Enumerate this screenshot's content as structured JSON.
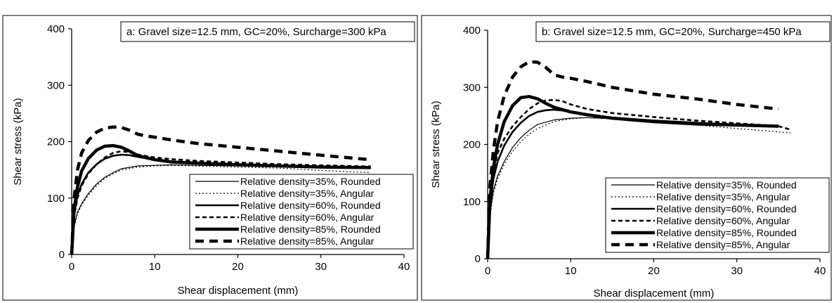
{
  "chart_data": [
    {
      "type": "line",
      "title": "a: Gravel size=12.5 mm, GC=20%, Surcharge=300 kPa",
      "xlabel": "Shear displacement (mm)",
      "ylabel": "Shear stress (kPa)",
      "xlim": [
        0,
        40
      ],
      "ylim": [
        0,
        400
      ],
      "xticks": [
        "0",
        "10",
        "20",
        "30",
        "40"
      ],
      "yticks": [
        "0",
        "100",
        "200",
        "300",
        "400"
      ],
      "grid": false,
      "legend_position": "bottom-right",
      "series": [
        {
          "name": "Relative density=35%, Rounded",
          "style": "thin-solid",
          "x": [
            0,
            0.3,
            0.7,
            1.2,
            2,
            3,
            4,
            5,
            6,
            8,
            10,
            12,
            15,
            20,
            25,
            30,
            36
          ],
          "y": [
            0,
            50,
            75,
            90,
            108,
            125,
            137,
            145,
            152,
            157,
            158,
            159,
            158,
            157,
            156,
            155,
            153
          ]
        },
        {
          "name": "Relative density=35%, Angular",
          "style": "thin-dotted",
          "x": [
            0,
            0.3,
            0.7,
            1.2,
            2,
            3,
            4,
            5,
            6,
            8,
            10,
            12,
            15,
            20,
            25,
            30,
            36
          ],
          "y": [
            0,
            48,
            72,
            88,
            105,
            122,
            135,
            143,
            150,
            155,
            157,
            158,
            157,
            155,
            153,
            149,
            145
          ]
        },
        {
          "name": "Relative density=60%, Rounded",
          "style": "medium-solid",
          "x": [
            0,
            0.3,
            0.7,
            1.2,
            2,
            3,
            4,
            5,
            6,
            7,
            8,
            10,
            12,
            15,
            20,
            25,
            30,
            36
          ],
          "y": [
            0,
            70,
            105,
            125,
            145,
            160,
            170,
            175,
            177,
            176,
            173,
            168,
            165,
            162,
            159,
            157,
            155,
            153
          ]
        },
        {
          "name": "Relative density=60%, Angular",
          "style": "medium-dashed",
          "x": [
            0,
            0.3,
            0.7,
            1.2,
            2,
            3,
            4,
            5,
            6,
            7,
            8,
            10,
            12,
            15,
            20,
            25,
            30,
            36
          ],
          "y": [
            0,
            68,
            100,
            122,
            143,
            160,
            172,
            180,
            183,
            181,
            177,
            172,
            169,
            166,
            163,
            160,
            158,
            156
          ]
        },
        {
          "name": "Relative density=85%, Rounded",
          "style": "thick-solid",
          "x": [
            0,
            0.3,
            0.7,
            1.2,
            2,
            3,
            4,
            5,
            6,
            7,
            8,
            10,
            12,
            15,
            20,
            25,
            30,
            36
          ],
          "y": [
            0,
            80,
            120,
            148,
            170,
            185,
            192,
            193,
            190,
            183,
            175,
            168,
            164,
            162,
            159,
            157,
            155,
            154
          ]
        },
        {
          "name": "Relative density=85%, Angular",
          "style": "thick-dashed",
          "x": [
            0,
            0.3,
            0.7,
            1.2,
            2,
            3,
            4,
            5,
            6,
            7,
            8,
            9,
            10,
            12,
            15,
            20,
            25,
            30,
            36
          ],
          "y": [
            0,
            100,
            150,
            180,
            202,
            217,
            224,
            226,
            225,
            220,
            213,
            210,
            208,
            203,
            197,
            190,
            183,
            176,
            168
          ]
        }
      ]
    },
    {
      "type": "line",
      "title": "b: Gravel size=12.5 mm, GC=20%, Surcharge=450 kPa",
      "xlabel": "Shear displacement (mm)",
      "ylabel": "Shear stress (kPa)",
      "xlim": [
        0,
        40
      ],
      "ylim": [
        0,
        400
      ],
      "xticks": [
        "0",
        "10",
        "20",
        "30",
        "40"
      ],
      "yticks": [
        "0",
        "100",
        "200",
        "300",
        "400"
      ],
      "grid": false,
      "legend_position": "bottom-right",
      "series": [
        {
          "name": "Relative density=35%, Rounded",
          "style": "thin-solid",
          "x": [
            0,
            0.3,
            0.7,
            1.2,
            2,
            3,
            4,
            5,
            6,
            8,
            10,
            12,
            15,
            20,
            25,
            30,
            35
          ],
          "y": [
            0,
            80,
            120,
            145,
            170,
            195,
            212,
            225,
            235,
            243,
            246,
            247,
            245,
            241,
            237,
            233,
            230
          ]
        },
        {
          "name": "Relative density=35%, Angular",
          "style": "thin-dotted",
          "x": [
            0,
            0.3,
            0.7,
            1.2,
            2,
            3,
            4,
            5,
            6,
            8,
            10,
            12,
            15,
            20,
            25,
            30,
            35,
            36.5
          ],
          "y": [
            0,
            75,
            115,
            140,
            165,
            188,
            205,
            218,
            228,
            240,
            245,
            247,
            245,
            240,
            234,
            228,
            222,
            220
          ]
        },
        {
          "name": "Relative density=60%, Rounded",
          "style": "medium-solid",
          "x": [
            0,
            0.3,
            0.7,
            1.2,
            2,
            3,
            4,
            5,
            6,
            7,
            8,
            10,
            12,
            15,
            20,
            25,
            30,
            35
          ],
          "y": [
            0,
            95,
            140,
            170,
            198,
            222,
            238,
            250,
            257,
            260,
            261,
            258,
            253,
            247,
            242,
            238,
            235,
            232
          ]
        },
        {
          "name": "Relative density=60%, Angular",
          "style": "medium-dashed",
          "x": [
            0,
            0.3,
            0.7,
            1.2,
            2,
            3,
            4,
            5,
            6,
            7,
            8,
            9,
            10,
            12,
            15,
            20,
            25,
            30,
            35,
            36.5
          ],
          "y": [
            0,
            100,
            150,
            185,
            210,
            232,
            248,
            262,
            272,
            277,
            278,
            276,
            270,
            262,
            255,
            248,
            242,
            237,
            232,
            226
          ]
        },
        {
          "name": "Relative density=85%, Rounded",
          "style": "thick-solid",
          "x": [
            0,
            0.3,
            0.7,
            1.2,
            2,
            3,
            4,
            5,
            6,
            7,
            8,
            10,
            12,
            15,
            20,
            25,
            30,
            35
          ],
          "y": [
            0,
            105,
            160,
            200,
            240,
            268,
            282,
            284,
            280,
            272,
            265,
            257,
            252,
            246,
            240,
            236,
            234,
            232
          ]
        },
        {
          "name": "Relative density=85%, Angular",
          "style": "thick-dashed",
          "x": [
            0,
            0.3,
            0.7,
            1.2,
            2,
            3,
            4,
            5,
            6,
            7,
            8,
            9,
            10,
            12,
            15,
            20,
            25,
            30,
            35
          ],
          "y": [
            0,
            130,
            190,
            240,
            285,
            318,
            336,
            345,
            344,
            335,
            322,
            318,
            316,
            310,
            300,
            288,
            280,
            270,
            262
          ]
        }
      ]
    }
  ]
}
